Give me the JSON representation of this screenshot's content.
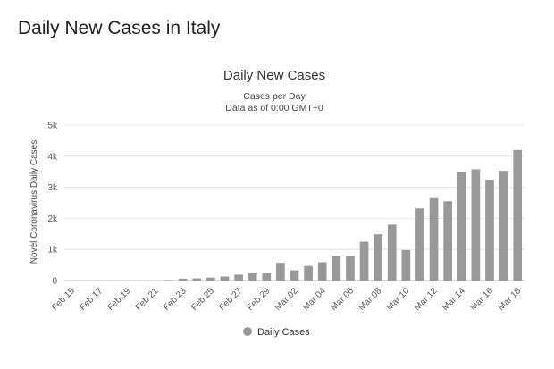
{
  "page": {
    "heading": "Daily New Cases in Italy"
  },
  "chart_data": {
    "type": "bar",
    "title": "Daily New Cases",
    "subtitle_lines": [
      "Cases per Day",
      "Data as of 0:00 GMT+0"
    ],
    "ylabel": "Novel Coronavirus Daily Cases",
    "xlabel": "",
    "ylim": [
      0,
      5000
    ],
    "y_ticks": [
      0,
      1000,
      2000,
      3000,
      4000,
      5000
    ],
    "y_tick_labels": [
      "0",
      "1k",
      "2k",
      "3k",
      "4k",
      "5k"
    ],
    "categories": [
      "Feb 15",
      "Feb 16",
      "Feb 17",
      "Feb 18",
      "Feb 19",
      "Feb 20",
      "Feb 21",
      "Feb 22",
      "Feb 23",
      "Feb 24",
      "Feb 25",
      "Feb 26",
      "Feb 27",
      "Feb 28",
      "Feb 29",
      "Mar 01",
      "Mar 02",
      "Mar 03",
      "Mar 04",
      "Mar 05",
      "Mar 06",
      "Mar 07",
      "Mar 08",
      "Mar 09",
      "Mar 10",
      "Mar 11",
      "Mar 12",
      "Mar 13",
      "Mar 14",
      "Mar 15",
      "Mar 16",
      "Mar 17",
      "Mar 18"
    ],
    "x_tick_labels": [
      "Feb 15",
      "Feb 17",
      "Feb 19",
      "Feb 21",
      "Feb 23",
      "Feb 25",
      "Feb 27",
      "Feb 29",
      "Mar 02",
      "Mar 04",
      "Mar 06",
      "Mar 08",
      "Mar 10",
      "Mar 12",
      "Mar 14",
      "Mar 16",
      "Mar 18"
    ],
    "series": [
      {
        "name": "Daily Cases",
        "color": "#999999",
        "values": [
          0,
          0,
          0,
          0,
          0,
          0,
          3,
          17,
          60,
          70,
          95,
          130,
          190,
          230,
          240,
          570,
          330,
          470,
          590,
          780,
          780,
          1250,
          1490,
          1800,
          980,
          2320,
          2650,
          2550,
          3500,
          3580,
          3230,
          3530,
          4200
        ]
      }
    ],
    "grid": true,
    "legend_position": "bottom-center"
  }
}
